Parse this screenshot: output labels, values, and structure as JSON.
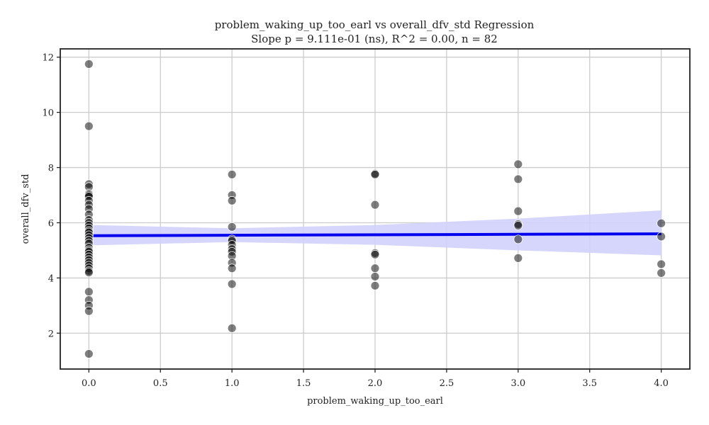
{
  "chart_data": {
    "type": "scatter",
    "title": "problem_waking_up_too_earl vs overall_dfv_std Regression",
    "subtitle": "Slope p = 9.111e-01 (ns), R^2 = 0.00, n = 82",
    "xlabel": "problem_waking_up_too_earl",
    "ylabel": "overall_dfv_std",
    "xlim": [
      -0.2,
      4.2
    ],
    "ylim": [
      0.7,
      12.3
    ],
    "xticks": [
      0.0,
      0.5,
      1.0,
      1.5,
      2.0,
      2.5,
      3.0,
      3.5,
      4.0
    ],
    "xtick_labels": [
      "0.0",
      "0.5",
      "1.0",
      "1.5",
      "2.0",
      "2.5",
      "3.0",
      "3.5",
      "4.0"
    ],
    "yticks": [
      2,
      4,
      6,
      8,
      10,
      12
    ],
    "ytick_labels": [
      "2",
      "4",
      "6",
      "8",
      "10",
      "12"
    ],
    "grid": true,
    "points": [
      [
        0,
        11.75
      ],
      [
        0,
        9.5
      ],
      [
        0,
        7.4
      ],
      [
        0,
        7.3
      ],
      [
        0,
        7.05
      ],
      [
        0,
        7.0
      ],
      [
        0,
        6.95
      ],
      [
        0,
        6.8
      ],
      [
        0,
        6.65
      ],
      [
        0,
        6.5
      ],
      [
        0,
        6.3
      ],
      [
        0,
        6.1
      ],
      [
        0,
        6.0
      ],
      [
        0,
        5.9
      ],
      [
        0,
        5.8
      ],
      [
        0,
        5.7
      ],
      [
        0,
        5.65
      ],
      [
        0,
        5.55
      ],
      [
        0,
        5.45
      ],
      [
        0,
        5.35
      ],
      [
        0,
        5.25
      ],
      [
        0,
        5.1
      ],
      [
        0,
        5.0
      ],
      [
        0,
        4.95
      ],
      [
        0,
        4.85
      ],
      [
        0,
        4.75
      ],
      [
        0,
        4.65
      ],
      [
        0,
        4.55
      ],
      [
        0,
        4.45
      ],
      [
        0,
        4.35
      ],
      [
        0,
        4.25
      ],
      [
        0,
        4.2
      ],
      [
        0,
        3.5
      ],
      [
        0,
        3.2
      ],
      [
        0,
        3.0
      ],
      [
        0,
        2.8
      ],
      [
        0,
        1.25
      ],
      [
        1,
        7.75
      ],
      [
        1,
        7.0
      ],
      [
        1,
        6.8
      ],
      [
        1,
        5.85
      ],
      [
        1,
        5.4
      ],
      [
        1,
        5.35
      ],
      [
        1,
        5.2
      ],
      [
        1,
        5.05
      ],
      [
        1,
        4.95
      ],
      [
        1,
        4.8
      ],
      [
        1,
        4.55
      ],
      [
        1,
        4.35
      ],
      [
        1,
        3.78
      ],
      [
        1,
        2.18
      ],
      [
        2,
        7.78
      ],
      [
        2,
        7.75
      ],
      [
        2,
        6.65
      ],
      [
        2,
        4.9
      ],
      [
        2,
        4.85
      ],
      [
        2,
        4.35
      ],
      [
        2,
        4.05
      ],
      [
        2,
        3.72
      ],
      [
        3,
        8.12
      ],
      [
        3,
        7.58
      ],
      [
        3,
        6.42
      ],
      [
        3,
        5.95
      ],
      [
        3,
        5.9
      ],
      [
        3,
        5.4
      ],
      [
        3,
        4.72
      ],
      [
        4,
        5.98
      ],
      [
        4,
        5.5
      ],
      [
        4,
        4.5
      ],
      [
        4,
        4.18
      ]
    ],
    "regression": {
      "x": [
        0,
        4
      ],
      "y": [
        5.53,
        5.6
      ]
    },
    "confidence_band": {
      "x": [
        0,
        1,
        2,
        3,
        4
      ],
      "lower": [
        5.18,
        5.3,
        5.2,
        5.0,
        4.82
      ],
      "upper": [
        5.92,
        5.8,
        5.92,
        6.15,
        6.45
      ]
    },
    "colors": {
      "points": "#000000",
      "regression_line": "#0000ee",
      "confidence_band": "#d2d2fc",
      "grid": "#cccccc",
      "frame": "#222222"
    }
  }
}
